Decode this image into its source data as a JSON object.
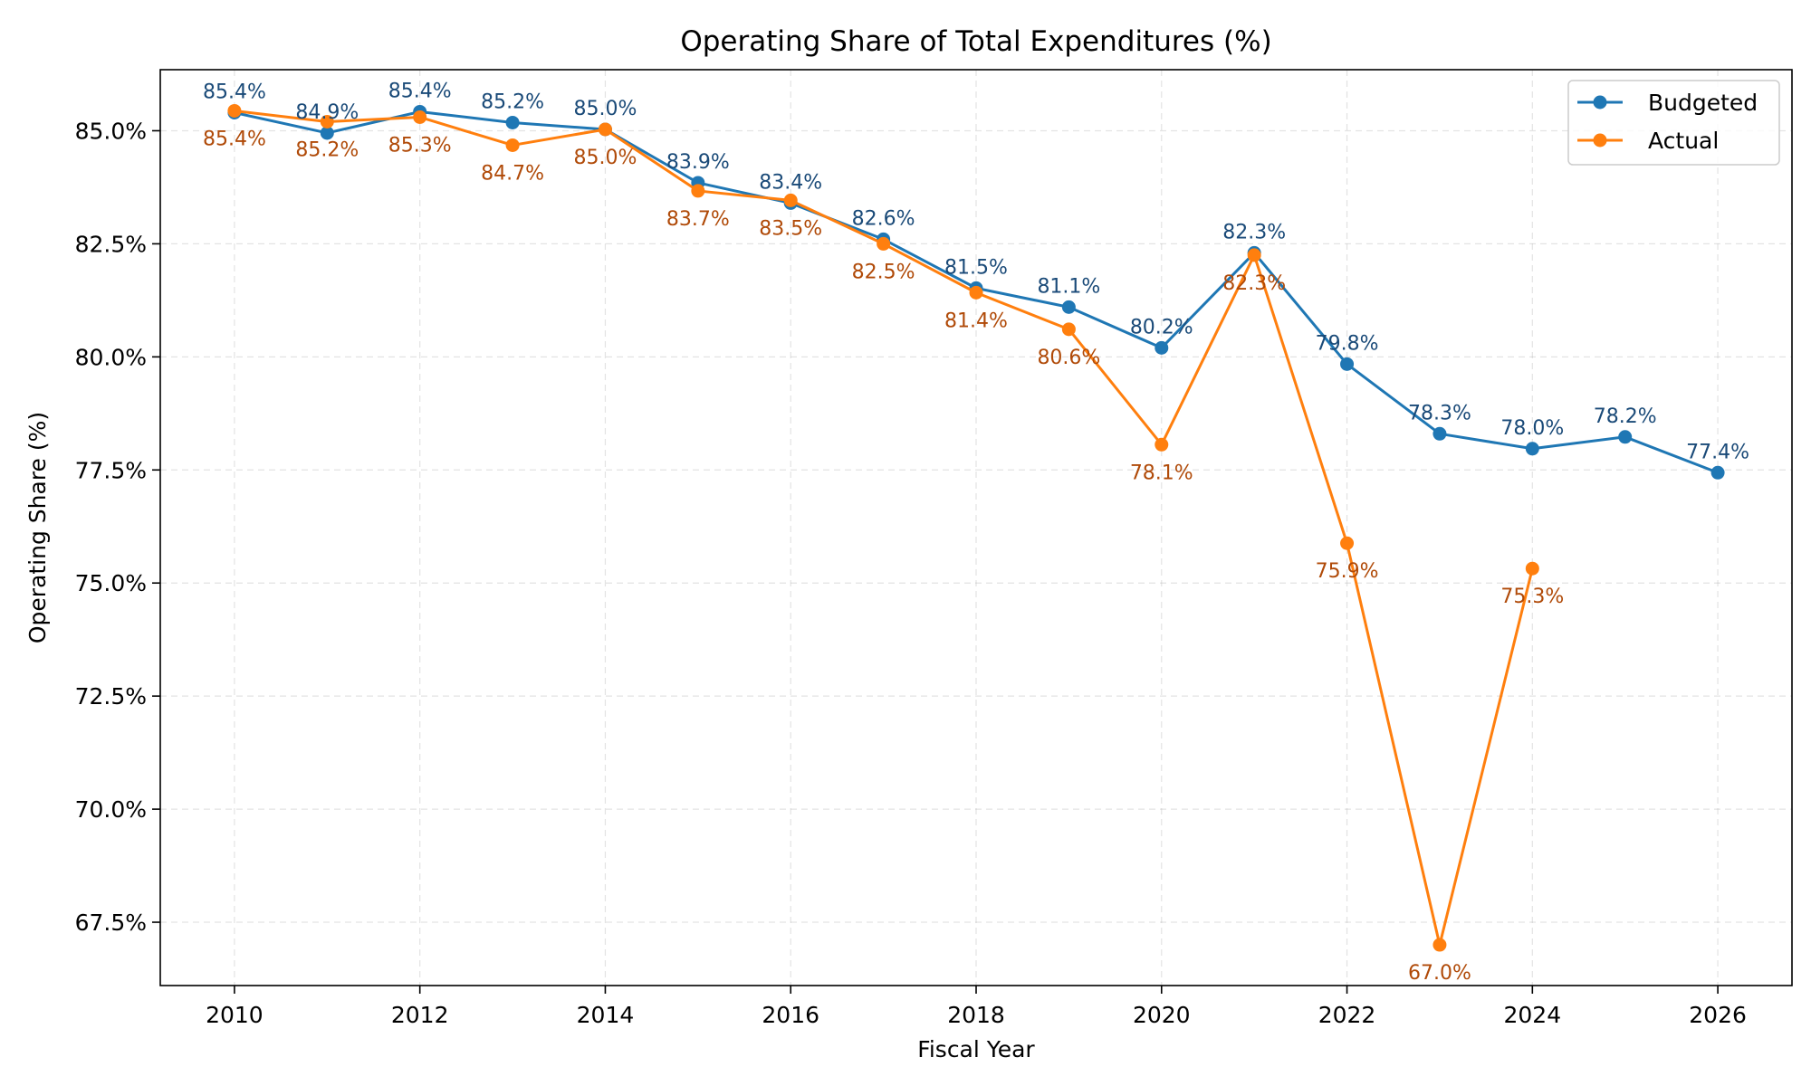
{
  "chart_data": {
    "type": "line",
    "title": "Operating Share of Total Expenditures (%)",
    "xlabel": "Fiscal Year",
    "ylabel": "Operating Share (%)",
    "xlim": [
      2009.2,
      2026.8
    ],
    "ylim": [
      66.1,
      86.35
    ],
    "xticks": [
      2010,
      2012,
      2014,
      2016,
      2018,
      2020,
      2022,
      2024,
      2026
    ],
    "yticks": [
      67.5,
      70.0,
      72.5,
      75.0,
      77.5,
      80.0,
      82.5,
      85.0
    ],
    "ytick_labels": [
      "67.5%",
      "70.0%",
      "72.5%",
      "75.0%",
      "77.5%",
      "80.0%",
      "82.5%",
      "85.0%"
    ],
    "grid": true,
    "legend_position": "top-right",
    "series": [
      {
        "name": "Budgeted",
        "color": "#1f77b4",
        "label_color": "#1a4a78",
        "label_position": "above",
        "x": [
          2010,
          2011,
          2012,
          2013,
          2014,
          2015,
          2016,
          2017,
          2018,
          2019,
          2020,
          2021,
          2022,
          2023,
          2024,
          2025,
          2026
        ],
        "y": [
          85.4,
          84.95,
          85.42,
          85.18,
          85.03,
          83.85,
          83.4,
          82.6,
          81.52,
          81.1,
          80.2,
          82.3,
          79.84,
          78.3,
          77.97,
          78.23,
          77.44
        ],
        "labels": [
          "85.4%",
          "84.9%",
          "85.4%",
          "85.2%",
          "85.0%",
          "83.9%",
          "83.4%",
          "82.6%",
          "81.5%",
          "81.1%",
          "80.2%",
          "82.3%",
          "79.8%",
          "78.3%",
          "78.0%",
          "78.2%",
          "77.4%"
        ]
      },
      {
        "name": "Actual",
        "color": "#ff7f0e",
        "label_color": "#b04a08",
        "label_position": "below",
        "x": [
          2010,
          2011,
          2012,
          2013,
          2014,
          2015,
          2016,
          2017,
          2018,
          2019,
          2020,
          2021,
          2022,
          2023,
          2024
        ],
        "y": [
          85.44,
          85.2,
          85.3,
          84.68,
          85.03,
          83.67,
          83.46,
          82.5,
          81.42,
          80.61,
          78.06,
          82.25,
          75.88,
          67.0,
          75.32
        ],
        "labels": [
          "85.4%",
          "85.2%",
          "85.3%",
          "84.7%",
          "85.0%",
          "83.7%",
          "83.5%",
          "82.5%",
          "81.4%",
          "80.6%",
          "78.1%",
          "82.3%",
          "75.9%",
          "67.0%",
          "75.3%"
        ]
      }
    ]
  }
}
